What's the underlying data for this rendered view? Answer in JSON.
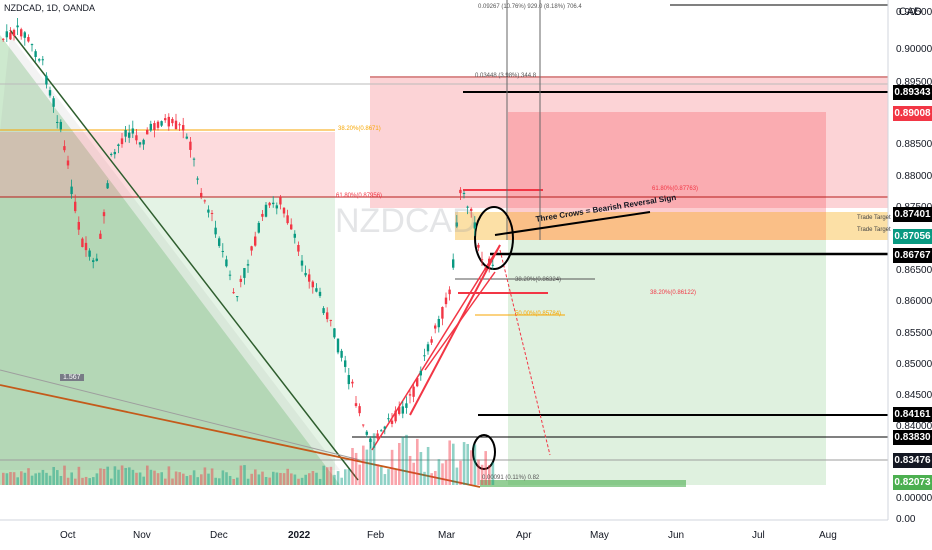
{
  "header": {
    "symbol": "NZDCAD, 1D, OANDA",
    "currency": "CAD",
    "watermark": "NZDCAD"
  },
  "chart_data": {
    "type": "candlestick",
    "y_ticks": [
      "0.90500",
      "0.90000",
      "0.89500",
      "0.88500",
      "0.88000",
      "0.87500",
      "0.87000",
      "0.86500",
      "0.86000",
      "0.85500",
      "0.85000",
      "0.84500",
      "0.84000",
      "0.00000",
      "0.00"
    ],
    "x_ticks": [
      "Oct",
      "Nov",
      "Dec",
      "2022",
      "Feb",
      "Mar",
      "Apr",
      "May",
      "Jun",
      "Jul",
      "Aug"
    ],
    "price_tags": [
      {
        "value": "0.89343",
        "bg": "#000000",
        "fg": "#ffffff"
      },
      {
        "value": "0.89008",
        "bg": "#f23645",
        "fg": "#ffffff"
      },
      {
        "value": "0.87401",
        "bg": "#000000",
        "fg": "#ffffff"
      },
      {
        "value": "0.87056",
        "bg": "#089981",
        "fg": "#ffffff"
      },
      {
        "value": "0.86767",
        "bg": "#000000",
        "fg": "#ffffff"
      },
      {
        "value": "0.84161",
        "bg": "#000000",
        "fg": "#ffffff"
      },
      {
        "value": "0.83830",
        "bg": "#000000",
        "fg": "#ffffff"
      },
      {
        "value": "0.83476",
        "bg": "#131722",
        "fg": "#ffffff"
      },
      {
        "value": "0.82073",
        "bg": "#4caf50",
        "fg": "#ffffff"
      }
    ],
    "annotations": {
      "fib_618_upper": "61.80%(0.87763)",
      "fib_618_left": "61.80%(0.87956)",
      "fib_382_left": "38.20%(0.8671)",
      "fib_382_right": "38.20%(0.86122)",
      "fib_50": "50.00%(0.85784)",
      "fib_mid": "38.20%(0.86324)",
      "pattern": "Three Crows = Bearish Reversal Sign",
      "trade_target_1": "Trade Target",
      "trade_target_2": "Trade Target",
      "ratio": "1.567",
      "measure_top": "0.09267 (10.76%) 929.0 (8.18%) 706.4",
      "measure_box": "0.03448 (3.98%) 344.8",
      "measure_bottom": "0.00091 (0.11%) 0.82"
    },
    "colors": {
      "up": "#089981",
      "down": "#f23645",
      "target": "#f7a600",
      "line": "#000000"
    }
  }
}
